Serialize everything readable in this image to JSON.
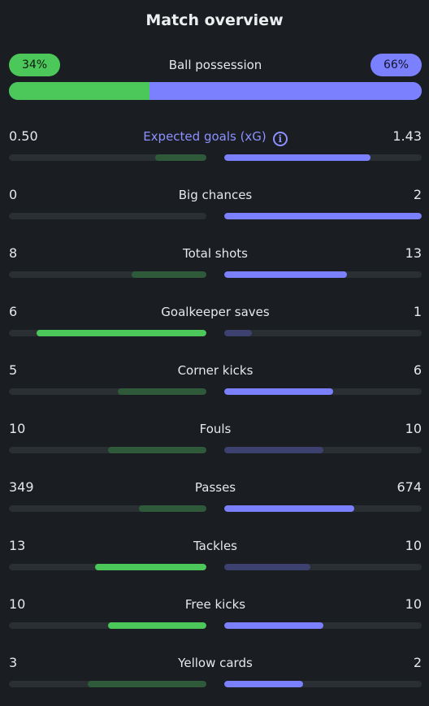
{
  "title": "Match overview",
  "colors": {
    "home_strong": "#4cc759",
    "home_dim": "#2f5a39",
    "away_strong": "#7b80ff",
    "away_dim": "#3d4170"
  },
  "possession": {
    "label": "Ball possession",
    "home_label": "34%",
    "away_label": "66%",
    "home": 34,
    "away": 66
  },
  "stats": [
    {
      "label": "Expected goals (xG)",
      "home_value": "0.50",
      "away_value": "1.43",
      "home_share": 0.26,
      "away_share": 0.74,
      "home_style": "dim",
      "away_style": "strong",
      "accent": true,
      "icon": "info-icon"
    },
    {
      "label": "Big chances",
      "home_value": "0",
      "away_value": "2",
      "home_share": 0,
      "away_share": 1,
      "home_style": "dim",
      "away_style": "strong"
    },
    {
      "label": "Total shots",
      "home_value": "8",
      "away_value": "13",
      "home_share": 0.38,
      "away_share": 0.62,
      "home_style": "dim",
      "away_style": "strong"
    },
    {
      "label": "Goalkeeper saves",
      "home_value": "6",
      "away_value": "1",
      "home_share": 0.86,
      "away_share": 0.14,
      "home_style": "strong",
      "away_style": "dim"
    },
    {
      "label": "Corner kicks",
      "home_value": "5",
      "away_value": "6",
      "home_share": 0.45,
      "away_share": 0.55,
      "home_style": "dim",
      "away_style": "strong"
    },
    {
      "label": "Fouls",
      "home_value": "10",
      "away_value": "10",
      "home_share": 0.5,
      "away_share": 0.5,
      "home_style": "dim",
      "away_style": "dim"
    },
    {
      "label": "Passes",
      "home_value": "349",
      "away_value": "674",
      "home_share": 0.34,
      "away_share": 0.66,
      "home_style": "dim",
      "away_style": "strong"
    },
    {
      "label": "Tackles",
      "home_value": "13",
      "away_value": "10",
      "home_share": 0.565,
      "away_share": 0.435,
      "home_style": "strong",
      "away_style": "dim"
    },
    {
      "label": "Free kicks",
      "home_value": "10",
      "away_value": "10",
      "home_share": 0.5,
      "away_share": 0.5,
      "home_style": "strong",
      "away_style": "strong"
    },
    {
      "label": "Yellow cards",
      "home_value": "3",
      "away_value": "2",
      "home_share": 0.6,
      "away_share": 0.4,
      "home_style": "dim",
      "away_style": "strong"
    }
  ]
}
